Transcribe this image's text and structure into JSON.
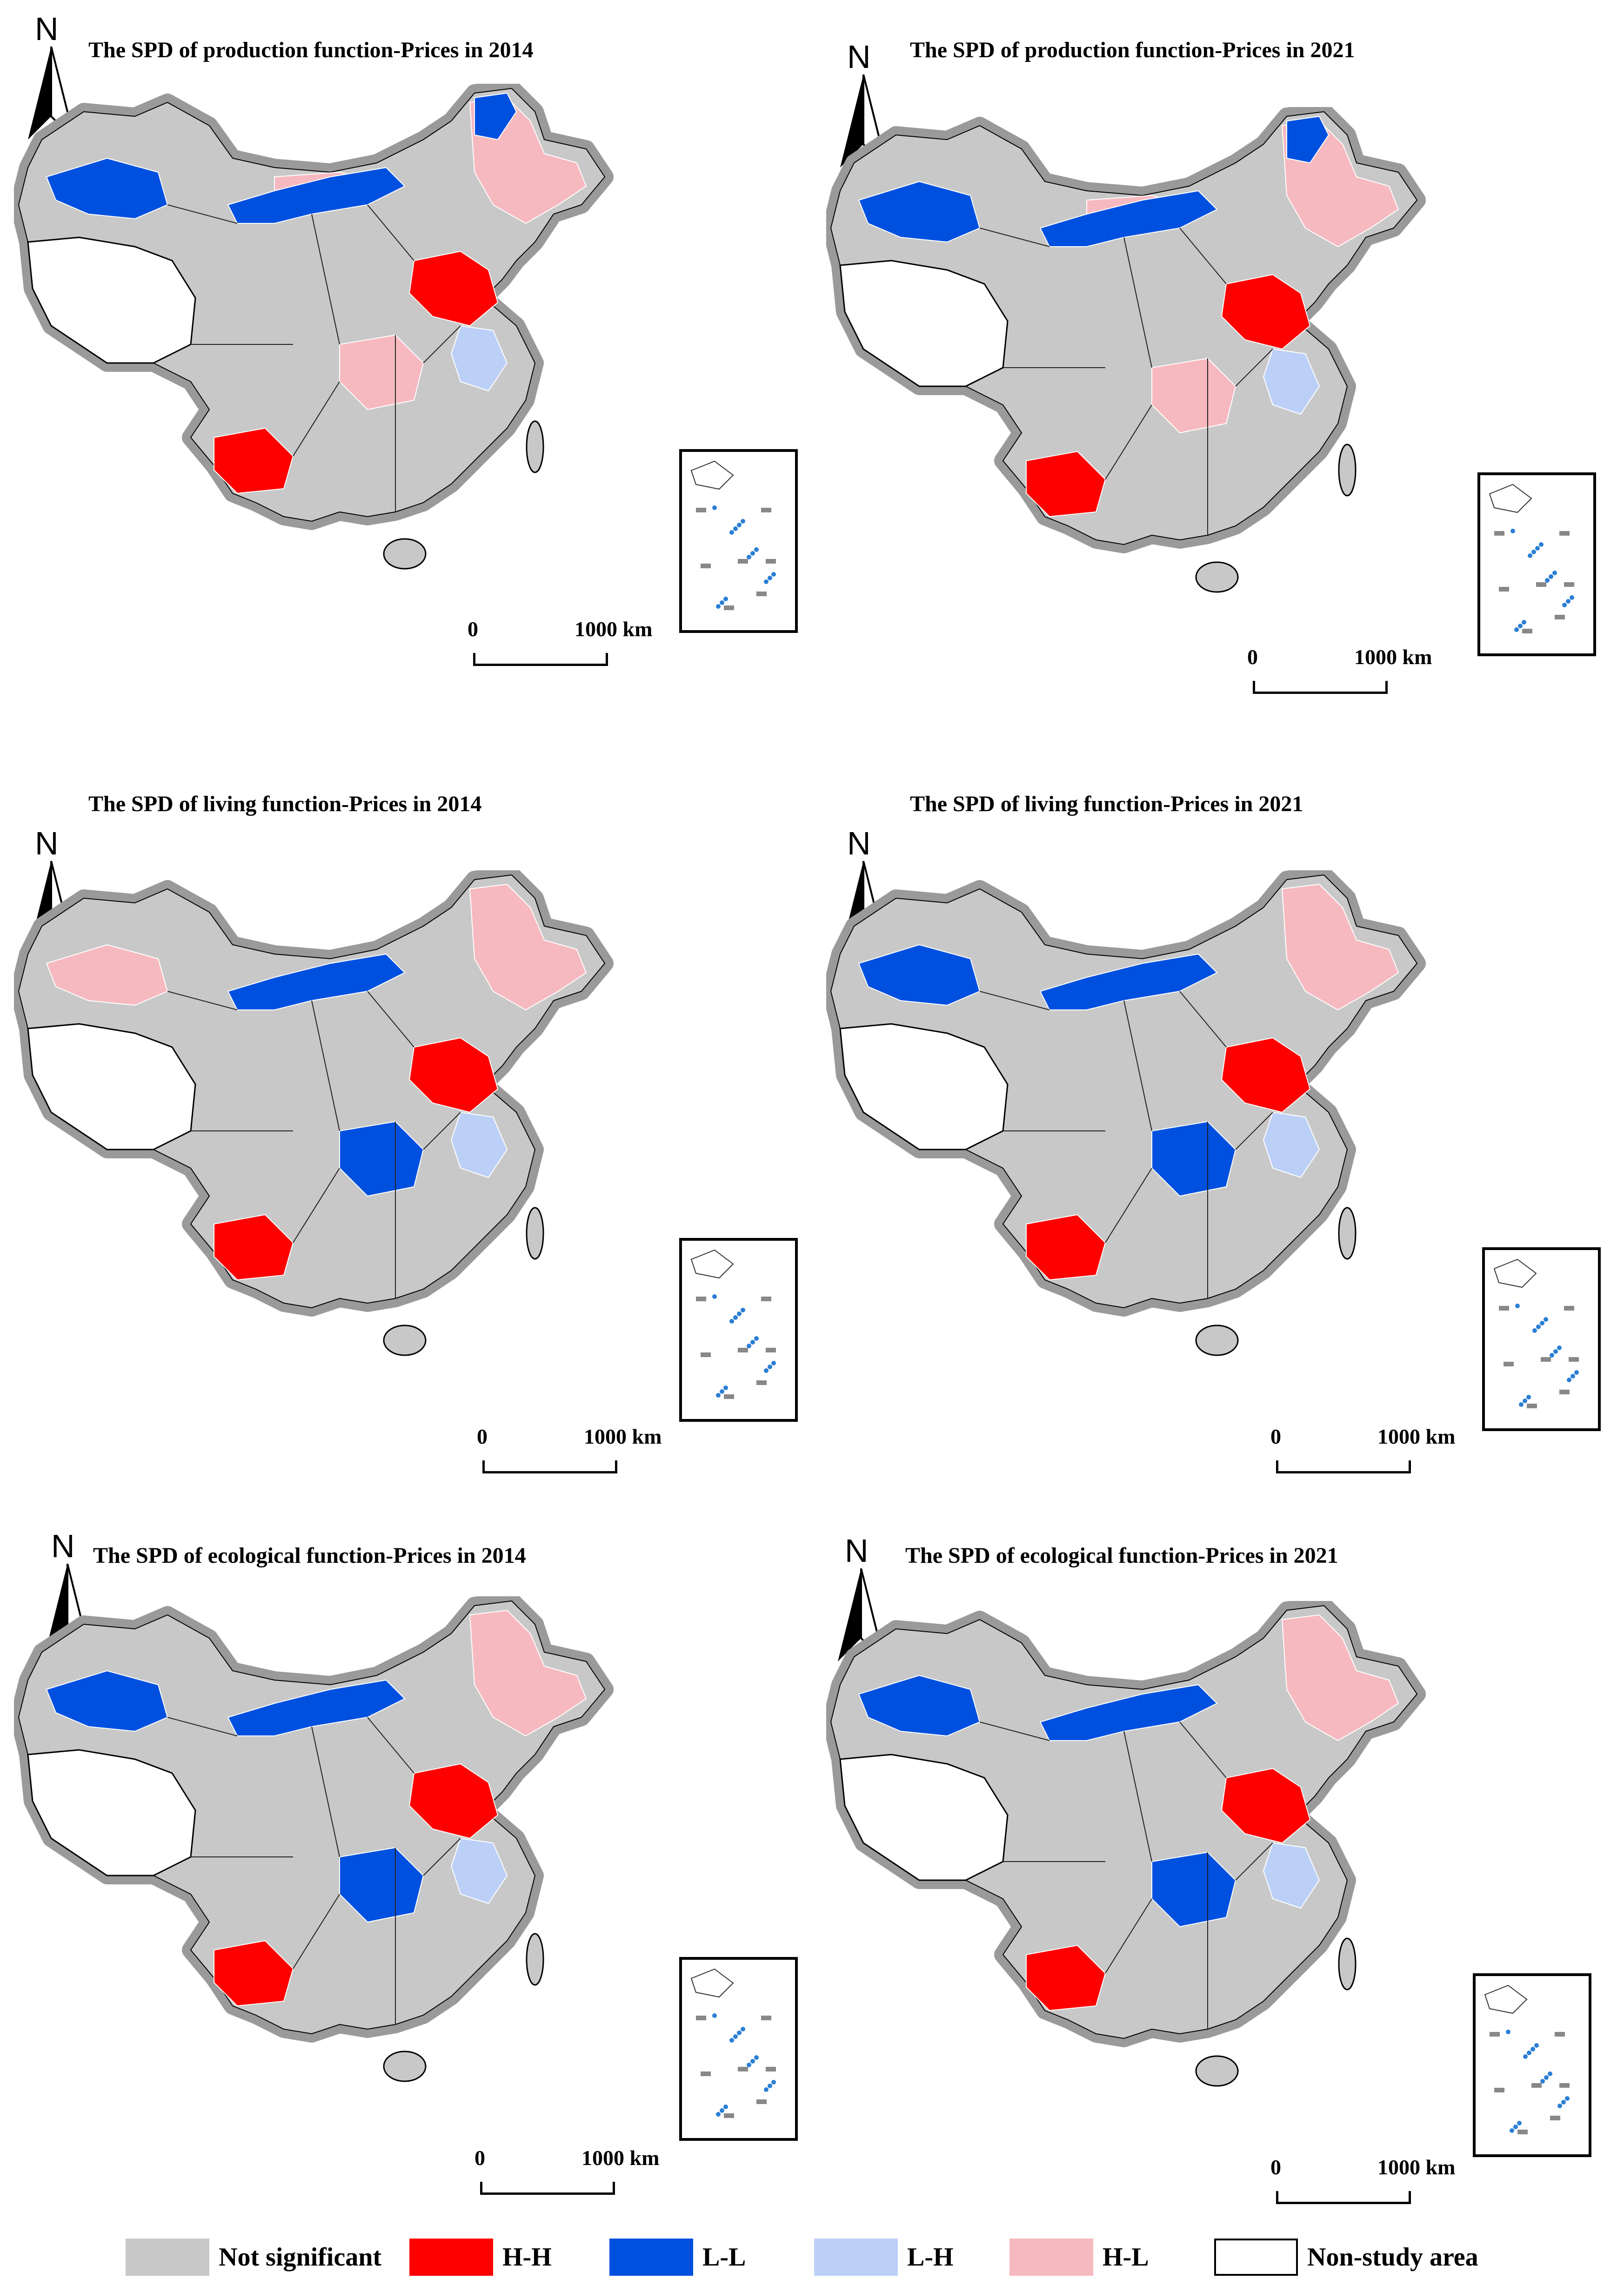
{
  "panels": [
    {
      "title": "The SPD of production function-Prices in 2014",
      "north": "N",
      "scale": {
        "zero": "0",
        "max": "1000 km"
      },
      "classes": {
        "hh": [
          [
            "east-central",
            1
          ],
          [
            "southwest",
            1
          ]
        ],
        "ll": [
          [
            "northwest",
            2
          ],
          [
            "north-bend",
            1
          ],
          [
            "northeast-tip",
            1
          ]
        ],
        "lh": [
          [
            "east-coast",
            1
          ]
        ],
        "hl": [
          [
            "northeast",
            1
          ],
          [
            "central",
            1
          ],
          [
            "north",
            1
          ]
        ],
        "ns": []
      }
    },
    {
      "title": "The SPD of production function-Prices in 2021",
      "north": "N",
      "scale": {
        "zero": "0",
        "max": "1000 km"
      },
      "classes": {
        "hh": [
          [
            "east-central",
            1
          ],
          [
            "southwest",
            1
          ]
        ],
        "ll": [
          [
            "northwest",
            2
          ],
          [
            "north-bend",
            1
          ],
          [
            "northeast-tip",
            1
          ]
        ],
        "lh": [
          [
            "east-coast",
            1
          ]
        ],
        "hl": [
          [
            "northeast",
            1
          ],
          [
            "central",
            1
          ],
          [
            "north",
            1
          ]
        ],
        "ns": []
      }
    },
    {
      "title": "The SPD of living function-Prices in 2014",
      "north": "N",
      "scale": {
        "zero": "0",
        "max": "1000 km"
      },
      "classes": {
        "hh": [
          [
            "east-central",
            1
          ],
          [
            "southwest",
            1
          ]
        ],
        "ll": [
          [
            "north-bend",
            1
          ],
          [
            "central",
            1
          ]
        ],
        "lh": [
          [
            "east-coast",
            1
          ]
        ],
        "hl": [
          [
            "northwest",
            1
          ],
          [
            "northeast",
            1
          ]
        ],
        "ns": []
      }
    },
    {
      "title": "The SPD of living function-Prices in 2021",
      "north": "N",
      "scale": {
        "zero": "0",
        "max": "1000 km"
      },
      "classes": {
        "hh": [
          [
            "east-central",
            1
          ],
          [
            "southwest",
            1
          ]
        ],
        "ll": [
          [
            "northwest",
            2
          ],
          [
            "north-bend",
            2
          ],
          [
            "central",
            1
          ]
        ],
        "lh": [
          [
            "east-coast",
            1
          ]
        ],
        "hl": [
          [
            "northeast",
            1
          ]
        ],
        "ns": []
      }
    },
    {
      "title": "The SPD of ecological  function-Prices in 2014",
      "north": "N",
      "scale": {
        "zero": "0",
        "max": "1000 km"
      },
      "classes": {
        "hh": [
          [
            "east-central",
            1
          ],
          [
            "southwest",
            2
          ]
        ],
        "ll": [
          [
            "northwest",
            2
          ],
          [
            "north-bend",
            2
          ],
          [
            "central",
            1
          ]
        ],
        "lh": [
          [
            "east-coast",
            1
          ]
        ],
        "hl": [
          [
            "northeast",
            1
          ]
        ],
        "ns": []
      }
    },
    {
      "title": "The SPD of ecological function-Prices in 2021",
      "north": "N",
      "scale": {
        "zero": "0",
        "max": "1000 km"
      },
      "classes": {
        "hh": [
          [
            "east-central",
            1
          ],
          [
            "southwest",
            2
          ]
        ],
        "ll": [
          [
            "northwest",
            2
          ],
          [
            "north-bend",
            2
          ],
          [
            "central",
            1
          ]
        ],
        "lh": [
          [
            "east-coast",
            1
          ]
        ],
        "hl": [
          [
            "northeast",
            1
          ]
        ],
        "ns": []
      }
    }
  ],
  "legend": [
    {
      "label": "Not significant",
      "color": "#c8c8c8"
    },
    {
      "label": "H-H",
      "color": "#ff0000"
    },
    {
      "label": "L-L",
      "color": "#0050e0"
    },
    {
      "label": "L-H",
      "color": "#bcd0f7"
    },
    {
      "label": "H-L",
      "color": "#f6b9bf"
    },
    {
      "label": "Non-study area",
      "color": "#ffffff"
    }
  ]
}
